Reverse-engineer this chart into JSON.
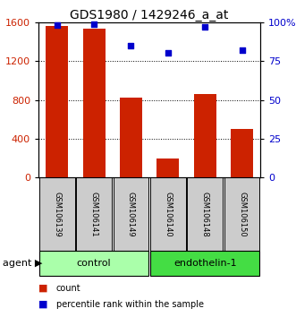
{
  "title": "GDS1980 / 1429246_a_at",
  "samples": [
    "GSM106139",
    "GSM106141",
    "GSM106149",
    "GSM106140",
    "GSM106148",
    "GSM106150"
  ],
  "counts": [
    1560,
    1530,
    820,
    200,
    860,
    500
  ],
  "percentiles": [
    98,
    99,
    85,
    80,
    97,
    82
  ],
  "bar_color": "#cc2200",
  "scatter_color": "#0000cc",
  "ylim_left": [
    0,
    1600
  ],
  "ylim_right": [
    0,
    100
  ],
  "yticks_left": [
    0,
    400,
    800,
    1200,
    1600
  ],
  "yticks_right": [
    0,
    25,
    50,
    75,
    100
  ],
  "ytick_labels_right": [
    "0",
    "25",
    "50",
    "75",
    "100%"
  ],
  "control_color": "#aaffaa",
  "endothelin_color": "#44dd44",
  "sample_box_color": "#cccccc",
  "legend_count_label": "count",
  "legend_pct_label": "percentile rank within the sample",
  "bar_width": 0.6,
  "title_fontsize": 10,
  "axis_label_color_left": "#cc2200",
  "axis_label_color_right": "#0000cc",
  "tick_fontsize": 8,
  "sample_fontsize": 6,
  "group_fontsize": 8,
  "legend_fontsize": 7
}
